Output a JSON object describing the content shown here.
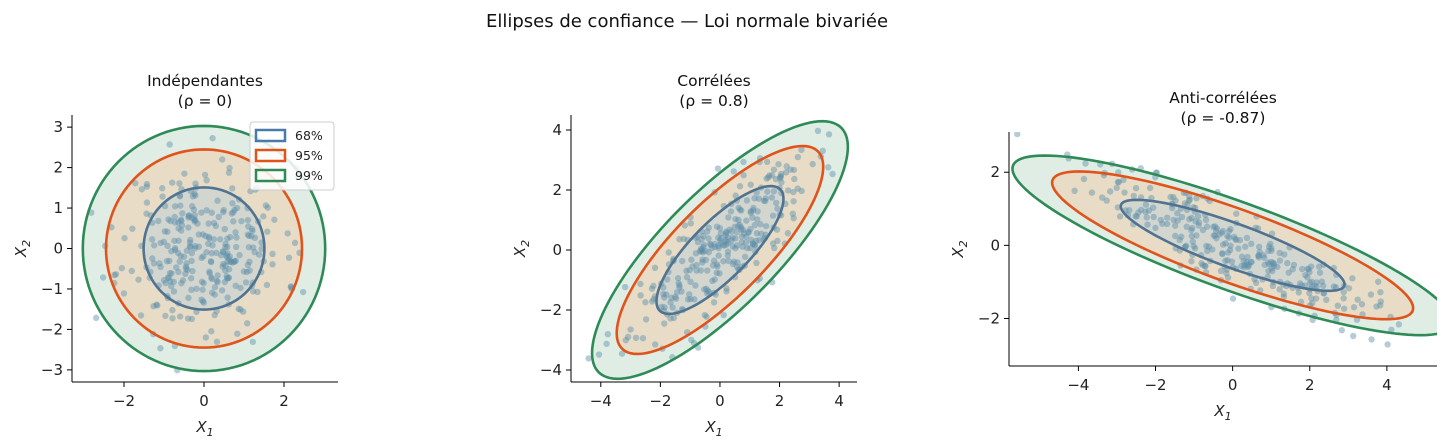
{
  "suptitle": "Ellipses de confiance — Loi normale bivariée",
  "legend": [
    {
      "label": "68%",
      "color": "#4a7aa7"
    },
    {
      "label": "95%",
      "color": "#e0531b"
    },
    {
      "label": "99%",
      "color": "#2e8b57"
    }
  ],
  "colors": {
    "points": "#5b8fa8",
    "ellipse68": "#4f7390",
    "ellipse95": "#e0531b",
    "ellipse99": "#2e8b57",
    "fill99": "#dcebe1",
    "fill95": "#e9d9c3",
    "fill68": "#d0d5cf"
  },
  "chart_data": [
    {
      "type": "scatter",
      "title_line1": "Indépendantes",
      "title_line2": "(ρ = 0)",
      "xlabel_base": "X",
      "xlabel_sub": "1",
      "ylabel_base": "X",
      "ylabel_sub": "2",
      "xlim": [
        -3.3,
        3.35
      ],
      "ylim": [
        -3.3,
        3.3
      ],
      "xticks": [
        -2,
        0,
        2
      ],
      "yticks": [
        -3,
        -2,
        -1,
        0,
        1,
        2,
        3
      ],
      "rho": 0,
      "sigma": [
        1,
        1
      ],
      "ellipses": [
        {
          "level": "68%",
          "a": 1.51,
          "b": 1.51,
          "angle": 0
        },
        {
          "level": "95%",
          "a": 2.45,
          "b": 2.45,
          "angle": 0
        },
        {
          "level": "99%",
          "a": 3.03,
          "b": 3.03,
          "angle": 0
        }
      ],
      "show_legend": true,
      "n_points": 300,
      "seed": 11
    },
    {
      "type": "scatter",
      "title_line1": "Corrélées",
      "title_line2": "(ρ = 0.8)",
      "xlabel_base": "X",
      "xlabel_sub": "1",
      "ylabel_base": "X",
      "ylabel_sub": "2",
      "xlim": [
        -5.0,
        4.6
      ],
      "ylim": [
        -4.4,
        4.5
      ],
      "xticks": [
        -4,
        -2,
        0,
        2,
        4
      ],
      "yticks": [
        -4,
        -2,
        0,
        2,
        4
      ],
      "rho": 0.8,
      "sigma": [
        1.5,
        1.5
      ],
      "ellipses": [
        {
          "level": "68%",
          "a": 2.86,
          "b": 0.95,
          "angle": 45
        },
        {
          "level": "95%",
          "a": 4.65,
          "b": 1.55,
          "angle": 45
        },
        {
          "level": "99%",
          "a": 5.76,
          "b": 1.92,
          "angle": 45
        }
      ],
      "show_legend": false,
      "n_points": 300,
      "seed": 23
    },
    {
      "type": "scatter",
      "title_line1": "Anti-corrélées",
      "title_line2": "(ρ = -0.87)",
      "xlabel_base": "X",
      "xlabel_sub": "1",
      "ylabel_base": "X",
      "ylabel_sub": "2",
      "xlim": [
        -5.8,
        5.3
      ],
      "ylim": [
        -3.3,
        3.1
      ],
      "xticks": [
        -4,
        -2,
        0,
        2,
        4
      ],
      "yticks": [
        -2,
        0,
        2
      ],
      "rho": -0.87,
      "sigma": [
        1.8,
        1.05
      ],
      "ellipses": [
        {
          "level": "68%",
          "a": 3.1,
          "b": 0.6,
          "angle": -21
        },
        {
          "level": "95%",
          "a": 5.0,
          "b": 1.0,
          "angle": -21
        },
        {
          "level": "99%",
          "a": 6.1,
          "b": 1.2,
          "angle": -21
        }
      ],
      "show_legend": false,
      "n_points": 300,
      "seed": 37
    }
  ]
}
